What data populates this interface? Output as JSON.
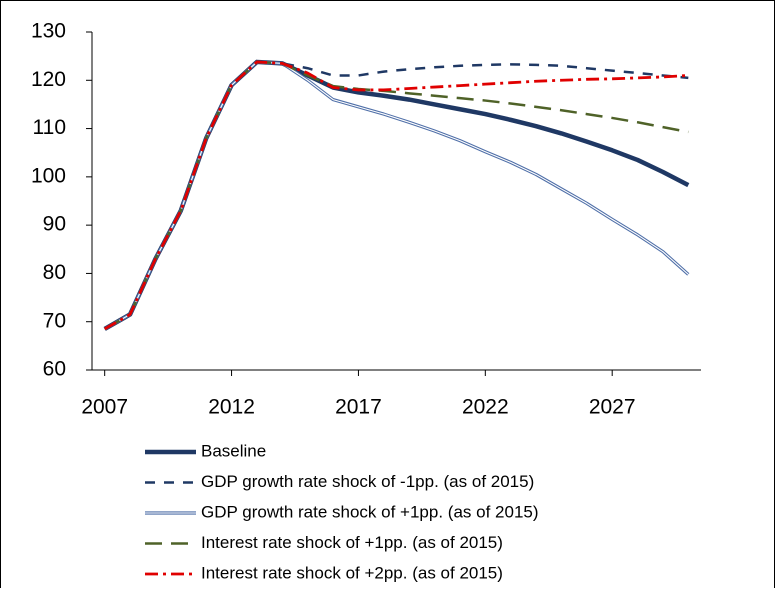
{
  "chart_data": {
    "type": "line",
    "x": [
      2007,
      2008,
      2009,
      2010,
      2011,
      2012,
      2013,
      2014,
      2015,
      2016,
      2017,
      2018,
      2019,
      2020,
      2021,
      2022,
      2023,
      2024,
      2025,
      2026,
      2027,
      2028,
      2029,
      2030
    ],
    "xlim": [
      2006.5,
      2030.5
    ],
    "xticks": [
      2007,
      2012,
      2017,
      2022,
      2027
    ],
    "ylim": [
      60,
      130
    ],
    "yticks": [
      60,
      70,
      80,
      90,
      100,
      110,
      120,
      130
    ],
    "legend": "bottom",
    "series": [
      {
        "name": "Baseline",
        "color": "#1f3864",
        "linestyle": "solid",
        "values": [
          68.5,
          71.5,
          83,
          93,
          108,
          119,
          123.8,
          123.5,
          121,
          118.5,
          117.5,
          116.8,
          116,
          115,
          114,
          113,
          111.8,
          110.5,
          109,
          107.3,
          105.5,
          103.5,
          101,
          98.3
        ]
      },
      {
        "name": "GDP growth rate shock of -1pp. (as of 2015)",
        "color": "#1f3864",
        "linestyle": "dashed",
        "values": [
          68.5,
          71.5,
          83,
          93,
          108,
          119,
          123.8,
          123.5,
          122.5,
          121,
          121,
          121.8,
          122.3,
          122.7,
          123,
          123.2,
          123.3,
          123.2,
          123,
          122.5,
          122,
          121.5,
          121,
          120.5
        ]
      },
      {
        "name": "GDP growth rate shock of +1pp. (as of 2015)",
        "color": "#4f6fa8",
        "linestyle": "double",
        "values": [
          68.5,
          71.5,
          83,
          93,
          108,
          119,
          123.8,
          123.5,
          120,
          116,
          114.5,
          113,
          111.3,
          109.5,
          107.5,
          105.2,
          103,
          100.5,
          97.5,
          94.5,
          91.2,
          88,
          84.5,
          79.8
        ]
      },
      {
        "name": "Interest rate shock of +1pp. (as of 2015)",
        "color": "#4f6228",
        "linestyle": "longdash",
        "values": [
          68.5,
          71.5,
          83,
          93,
          108,
          119,
          123.8,
          123.5,
          121,
          118.8,
          118.2,
          117.8,
          117.3,
          116.8,
          116.3,
          115.8,
          115.2,
          114.5,
          113.8,
          113,
          112.2,
          111.3,
          110.3,
          109.3
        ]
      },
      {
        "name": "Interest rate shock of +2pp. (as of 2015)",
        "color": "#e00000",
        "linestyle": "dashdot",
        "values": [
          68.5,
          71.5,
          83,
          93,
          108,
          119,
          123.8,
          123.5,
          121.5,
          118.5,
          118,
          118,
          118.3,
          118.6,
          118.9,
          119.2,
          119.5,
          119.8,
          120,
          120.2,
          120.3,
          120.5,
          120.7,
          121
        ]
      }
    ]
  }
}
